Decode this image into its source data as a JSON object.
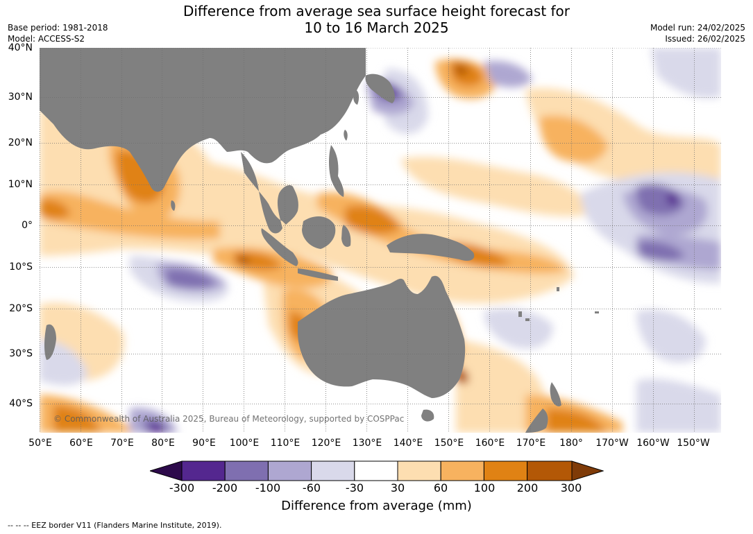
{
  "title": {
    "line1": "Difference from average sea surface height forecast for",
    "line2": "10 to 16 March 2025"
  },
  "meta_left": {
    "base_period": "Base period: 1981-2018",
    "model": "Model: ACCESS-S2"
  },
  "meta_right": {
    "model_run": "Model run: 24/02/2025",
    "issued": "Issued: 26/02/2025"
  },
  "map": {
    "lat_labels": [
      "40°N",
      "30°N",
      "20°N",
      "10°N",
      "0°",
      "10°S",
      "20°S",
      "30°S",
      "40°S"
    ],
    "lon_labels": [
      "50°E",
      "60°E",
      "70°E",
      "80°E",
      "90°E",
      "100°E",
      "110°E",
      "120°E",
      "130°E",
      "140°E",
      "150°E",
      "160°E",
      "170°E",
      "180°",
      "170°W",
      "160°W",
      "150°W"
    ],
    "land_color": "#808080",
    "ocean_base_color": "#ffffff",
    "copyright": "© Commonwealth of Australia 2025, Bureau of Meteorology, supported by COSPPac"
  },
  "colorbar": {
    "ticks": [
      "-300",
      "-200",
      "-100",
      "-60",
      "-30",
      "30",
      "60",
      "100",
      "200",
      "300"
    ],
    "colors": [
      "#2d0a4b",
      "#54278f",
      "#7f6fb0",
      "#aea7d1",
      "#d9d9ea",
      "#ffffff",
      "#fddeb1",
      "#f7b25f",
      "#e08214",
      "#b35806",
      "#7f3b08"
    ],
    "label": "Difference from average (mm)"
  },
  "footer": {
    "eez": "--  --  -- EEZ border V11 (Flanders Marine Institute, 2019)."
  }
}
